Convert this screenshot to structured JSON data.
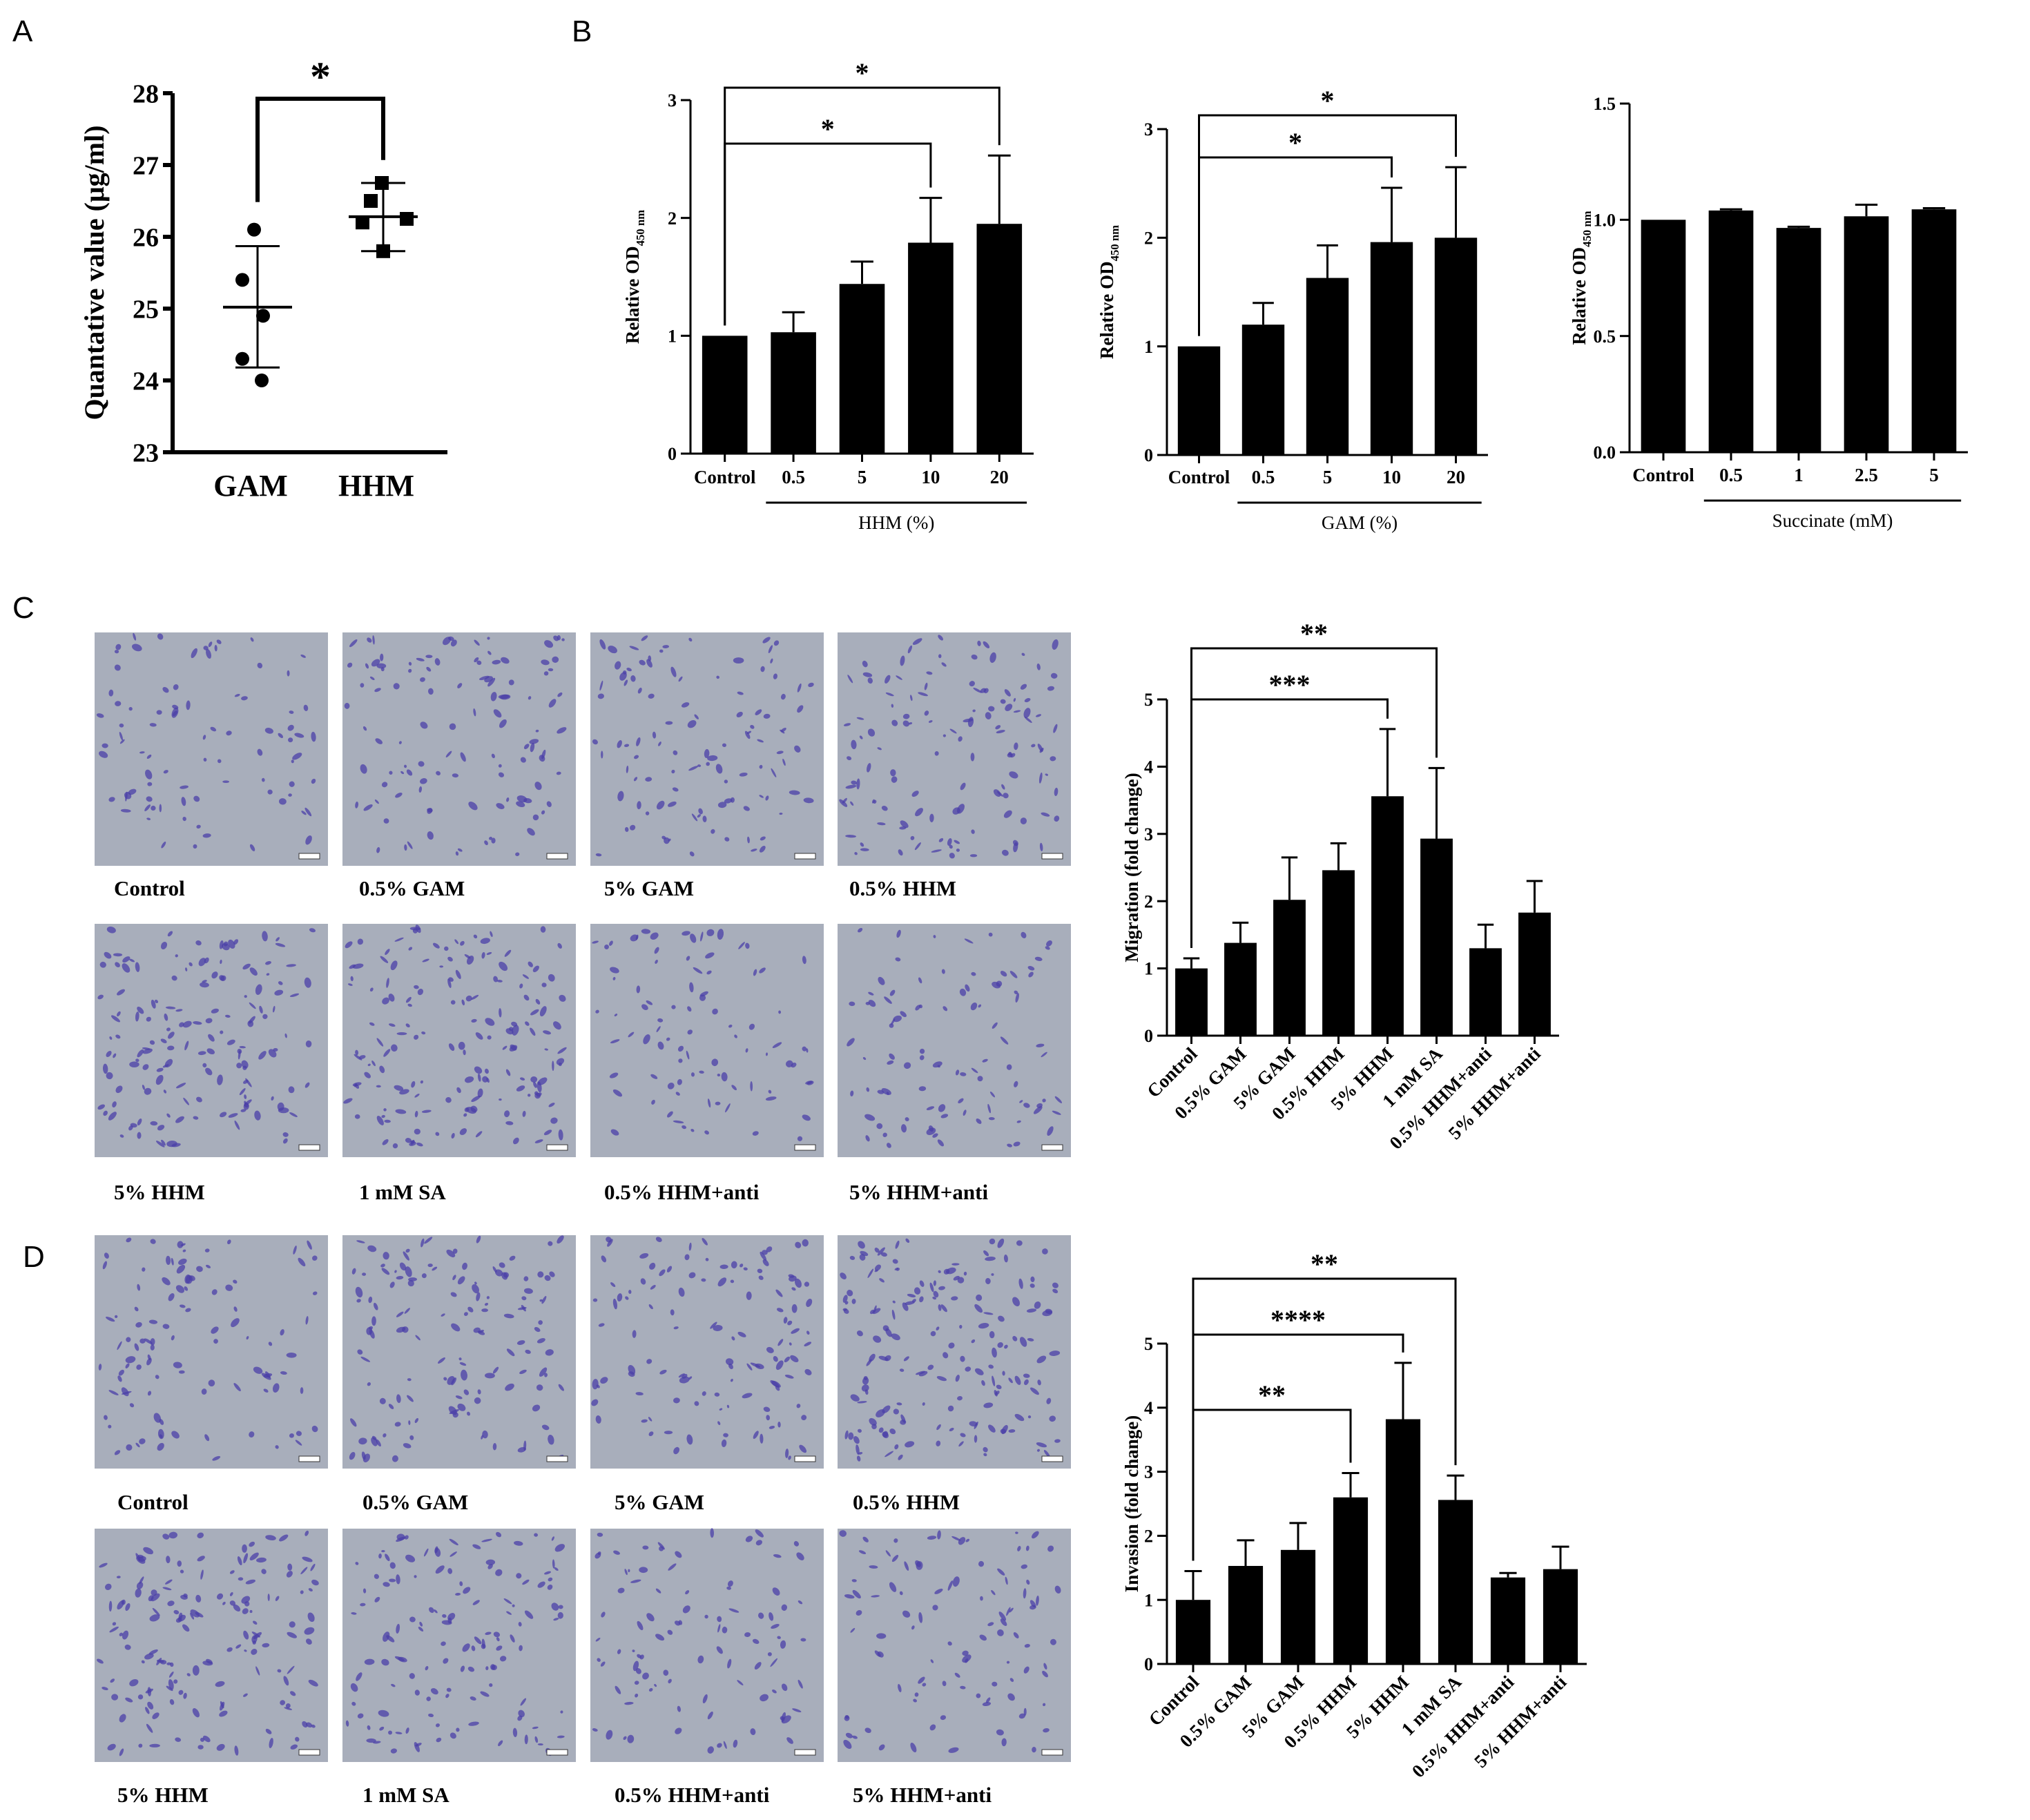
{
  "panels": [
    "A",
    "B",
    "C",
    "D"
  ],
  "chart_data": [
    {
      "id": "A",
      "type": "scatter",
      "ylabel": "Quantative value (μg/ml)",
      "ylim": [
        23,
        28
      ],
      "yticks": [
        23,
        24,
        25,
        26,
        27,
        28
      ],
      "categories": [
        "GAM",
        "HHM"
      ],
      "groups": [
        {
          "name": "GAM",
          "marker": "circle",
          "points": [
            26.1,
            25.4,
            24.9,
            24.3,
            24.0
          ],
          "mean": 25.02,
          "sd_low": 24.18,
          "sd_high": 25.87
        },
        {
          "name": "HHM",
          "marker": "square",
          "points": [
            26.75,
            26.5,
            26.2,
            26.25,
            25.8
          ],
          "mean": 26.28,
          "sd_low": 25.8,
          "sd_high": 26.75
        }
      ],
      "significance": [
        {
          "from": 0,
          "to": 1,
          "label": "*"
        }
      ]
    },
    {
      "id": "B1",
      "type": "bar",
      "ylabel": "Relative OD",
      "ylabel_sub": "450 nm",
      "ylim": [
        0,
        3
      ],
      "yticks": [
        "0",
        "1",
        "2",
        "3"
      ],
      "categories": [
        "Control",
        "0.5",
        "5",
        "10",
        "20"
      ],
      "values": [
        1.0,
        1.03,
        1.44,
        1.79,
        1.95
      ],
      "errors": [
        0.0,
        0.17,
        0.19,
        0.38,
        0.58
      ],
      "group_label": "HHM (%)",
      "group_span": [
        1,
        4
      ],
      "significance": [
        {
          "from": 0,
          "to": 3,
          "label": "*"
        },
        {
          "from": 0,
          "to": 4,
          "label": "*"
        }
      ]
    },
    {
      "id": "B2",
      "type": "bar",
      "ylabel": "Relative OD",
      "ylabel_sub": "450 nm",
      "ylim": [
        0,
        3
      ],
      "yticks": [
        "0",
        "1",
        "2",
        "3"
      ],
      "categories": [
        "Control",
        "0.5",
        "5",
        "10",
        "20"
      ],
      "values": [
        1.0,
        1.2,
        1.63,
        1.96,
        2.0
      ],
      "errors": [
        0.0,
        0.2,
        0.3,
        0.5,
        0.65
      ],
      "group_label": "GAM (%)",
      "group_span": [
        1,
        4
      ],
      "significance": [
        {
          "from": 0,
          "to": 3,
          "label": "*"
        },
        {
          "from": 0,
          "to": 4,
          "label": "*"
        }
      ]
    },
    {
      "id": "B3",
      "type": "bar",
      "ylabel": "Relative OD",
      "ylabel_sub": "450 nm",
      "ylim": [
        0,
        1.5
      ],
      "yticks": [
        "0.0",
        "0.5",
        "1.0",
        "1.5"
      ],
      "categories": [
        "Control",
        "0.5",
        "1",
        "2.5",
        "5"
      ],
      "values": [
        1.0,
        1.04,
        0.965,
        1.015,
        1.045
      ],
      "errors": [
        0.0,
        0.005,
        0.005,
        0.05,
        0.005
      ],
      "group_label": "Succinate (mM)",
      "group_span": [
        1,
        4
      ],
      "significance": []
    },
    {
      "id": "C",
      "type": "bar",
      "ylabel": "Migration (fold change)",
      "ylim": [
        0,
        5
      ],
      "yticks": [
        "0",
        "1",
        "2",
        "3",
        "4",
        "5"
      ],
      "categories": [
        "Control",
        "0.5% GAM",
        "5% GAM",
        "0.5% HHM",
        "5% HHM",
        "1 mM SA",
        "0.5% HHM+anti",
        "5% HHM+anti"
      ],
      "values": [
        1.0,
        1.38,
        2.02,
        2.46,
        3.56,
        2.93,
        1.3,
        1.83
      ],
      "errors": [
        0.15,
        0.3,
        0.63,
        0.4,
        1.0,
        1.05,
        0.35,
        0.47
      ],
      "significance": [
        {
          "from": 0,
          "to": 4,
          "label": "***"
        },
        {
          "from": 0,
          "to": 5,
          "label": "**"
        }
      ]
    },
    {
      "id": "D",
      "type": "bar",
      "ylabel": "Invasion (fold change)",
      "ylim": [
        0,
        5
      ],
      "yticks": [
        "0",
        "1",
        "2",
        "3",
        "4",
        "5"
      ],
      "categories": [
        "Control",
        "0.5% GAM",
        "5% GAM",
        "0.5% HHM",
        "5% HHM",
        "1 mM SA",
        "0.5% HHM+anti",
        "5% HHM+anti"
      ],
      "values": [
        1.0,
        1.53,
        1.78,
        2.6,
        3.82,
        2.56,
        1.35,
        1.48
      ],
      "errors": [
        0.45,
        0.4,
        0.42,
        0.38,
        0.88,
        0.38,
        0.07,
        0.35
      ],
      "significance": [
        {
          "from": 0,
          "to": 3,
          "label": "**"
        },
        {
          "from": 0,
          "to": 4,
          "label": "****"
        },
        {
          "from": 0,
          "to": 5,
          "label": "**"
        }
      ]
    }
  ],
  "photo_grids": [
    {
      "id": "C",
      "labels": [
        "Control",
        "0.5% GAM",
        "5% GAM",
        "0.5% HHM",
        "5% HHM",
        "1 mM SA",
        "0.5% HHM+anti",
        "5% HHM+anti"
      ],
      "density": [
        0.28,
        0.45,
        0.42,
        0.55,
        0.72,
        0.78,
        0.3,
        0.35
      ]
    },
    {
      "id": "D",
      "labels": [
        "Control",
        "0.5% GAM",
        "5% GAM",
        "0.5% HHM",
        "5% HHM",
        "1 mM SA",
        "0.5% HHM+anti",
        "5% HHM+anti"
      ],
      "density": [
        0.4,
        0.6,
        0.5,
        0.85,
        0.75,
        0.6,
        0.35,
        0.38
      ]
    }
  ],
  "colors": {
    "bar": "#000000",
    "axis": "#000000",
    "photo_bg": "#a8aebb",
    "cells": "#4b3fa8"
  }
}
